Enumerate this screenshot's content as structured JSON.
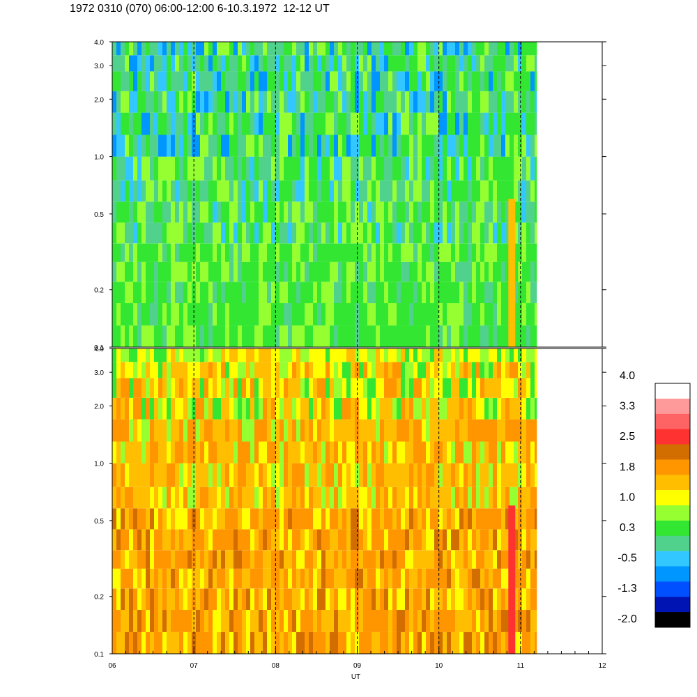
{
  "title": "1972 0310 (070) 06:00-12:00 6-10.3.1972  12-12 UT",
  "chart_data": [
    {
      "type": "heatmap",
      "panel": "upper",
      "x_range": [
        "06",
        "12"
      ],
      "y_range": [
        0.1,
        4.0
      ],
      "y_scale": "log",
      "y_tick_labels": [
        "0.1",
        "0.2",
        "0.5",
        "1.0",
        "2.0",
        "3.0",
        "4.0"
      ],
      "data_end_hour": 11.2,
      "dominant_levels": "green (0.3) to cyan (-0.5), blue streaks above 1.0",
      "hour_markers": [
        "07",
        "08",
        "09",
        "10",
        "11"
      ]
    },
    {
      "type": "heatmap",
      "panel": "lower",
      "x_range": [
        "06",
        "12"
      ],
      "y_range": [
        0.1,
        4.0
      ],
      "y_scale": "log",
      "y_tick_labels": [
        "0.1",
        "0.2",
        "0.5",
        "1.0",
        "2.0",
        "3.0",
        "4.0"
      ],
      "data_end_hour": 11.2,
      "dominant_levels": "orange (1.8) to yellow (1.0), green near top",
      "hour_markers": [
        "07",
        "08",
        "09",
        "10",
        "11"
      ]
    }
  ],
  "x_axis": {
    "label": "UT",
    "tick_labels": [
      "06",
      "07",
      "08",
      "09",
      "10",
      "11",
      "12"
    ]
  },
  "colorbar": {
    "labels": [
      "4.0",
      "3.3",
      "2.5",
      "1.8",
      "1.0",
      "0.3",
      "-0.5",
      "-1.3",
      "-2.0"
    ],
    "colors": [
      "#ffffff",
      "#ff9a9a",
      "#ff6464",
      "#ff3232",
      "#d26e00",
      "#ff9600",
      "#ffbe00",
      "#ffff00",
      "#96ff32",
      "#32e632",
      "#50d28c",
      "#32c8ff",
      "#0096ff",
      "#0050ff",
      "#0014b4",
      "#000000"
    ]
  }
}
